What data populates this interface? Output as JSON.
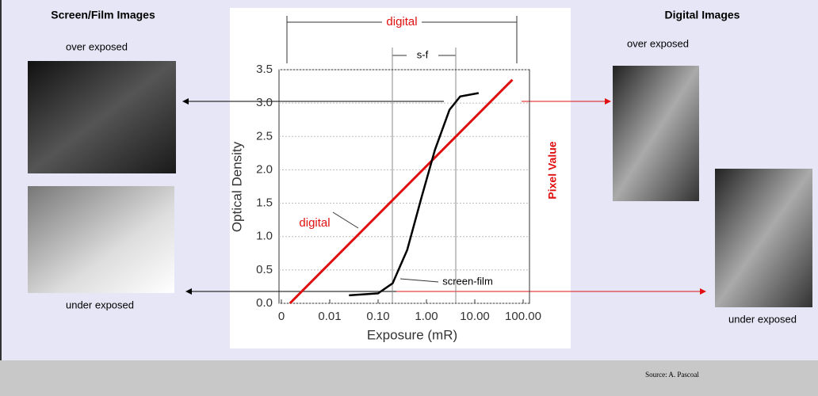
{
  "slide": {
    "left_title": "Screen/Film Images",
    "left_over": "over exposed",
    "left_under": "under exposed",
    "right_title": "Digital Images",
    "right_over": "over exposed",
    "right_under": "under exposed",
    "source": "Source: A. Pascoal"
  },
  "chart_data": {
    "type": "line",
    "x_label": "Exposure (mR)",
    "y_label": "Optical Density",
    "y2_label": "Pixel Value",
    "annotations": {
      "digital_range": "digital",
      "sf_range": "s-f",
      "digital_line": "digital",
      "screen_film_line": "screen-film"
    },
    "log_scale_x": true,
    "grid": true,
    "xlim": [
      0.001,
      100
    ],
    "ylim": [
      0,
      3.5
    ],
    "xticks": [
      {
        "value": 0.001,
        "label": "0"
      },
      0.01,
      {
        "value": 0.1,
        "label": "0.10"
      },
      {
        "value": 1,
        "label": "1.00"
      },
      {
        "value": 10,
        "label": "10.00"
      },
      {
        "value": 100,
        "label": "100.00"
      }
    ],
    "yticks": [
      {
        "value": 0,
        "label": "0.0"
      },
      0.5,
      {
        "value": 1,
        "label": "1.0"
      },
      1.5,
      {
        "value": 2,
        "label": "2.0"
      },
      2.5,
      {
        "value": 3,
        "label": "3.0"
      },
      3.5
    ],
    "series": [
      {
        "name": "digital",
        "color": "#e01010",
        "x": [
          0.0015,
          60
        ],
        "values": [
          0.0,
          3.35
        ]
      },
      {
        "name": "screen-film",
        "color": "#000000",
        "x": [
          0.025,
          0.1,
          0.2,
          0.4,
          0.8,
          1.5,
          3,
          5,
          12
        ],
        "values": [
          0.12,
          0.15,
          0.3,
          0.8,
          1.6,
          2.3,
          2.9,
          3.1,
          3.15
        ]
      }
    ]
  }
}
